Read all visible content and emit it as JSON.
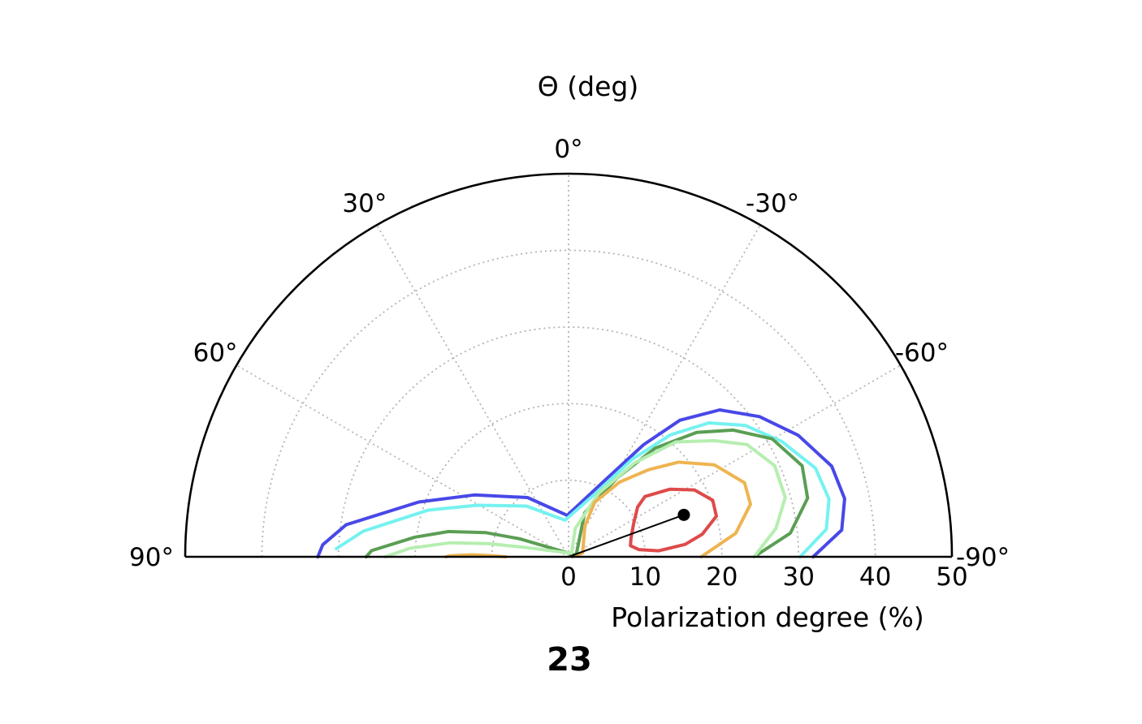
{
  "chart_data": {
    "type": "polar-contour",
    "title": "Θ (deg)",
    "xlabel": "Polarization degree (%)",
    "panel_number": "23",
    "radial_axis": {
      "range": [
        0,
        50
      ],
      "ticks": [
        0,
        10,
        20,
        30,
        40,
        50
      ],
      "tick_labels": [
        "0",
        "10",
        "20",
        "30",
        "40",
        "50"
      ],
      "grid": "dotted"
    },
    "angular_axis": {
      "range_deg": [
        -90,
        90
      ],
      "ticks": [
        90,
        60,
        30,
        0,
        -30,
        -60,
        -90
      ],
      "tick_labels": [
        "90°",
        "60°",
        "30°",
        "0°",
        "-30°",
        "-60°",
        "-90°"
      ],
      "grid": "dotted"
    },
    "contours": [
      {
        "color": "#4848e8",
        "points": [
          [
            31.9,
            -90
          ],
          [
            35.8,
            -84.4
          ],
          [
            36.8,
            -78.1
          ],
          [
            36.3,
            -71
          ],
          [
            33.9,
            -62.1
          ],
          [
            30.9,
            -53.7
          ],
          [
            27.5,
            -45.8
          ],
          [
            23.0,
            -39.2
          ],
          [
            17.6,
            -33.8
          ],
          [
            10.8,
            -24.9
          ],
          [
            5.4,
            1.8
          ],
          [
            9.4,
            34.7
          ],
          [
            14.7,
            56.7
          ],
          [
            20.8,
            69.9
          ],
          [
            29.3,
            81.8
          ],
          [
            32.1,
            87.2
          ],
          [
            32.7,
            90
          ]
        ]
      },
      {
        "color": "#74f2f0",
        "points": [
          [
            30.2,
            -90
          ],
          [
            33.8,
            -83.9
          ],
          [
            34.8,
            -77.5
          ],
          [
            34.2,
            -70.2
          ],
          [
            31.6,
            -61.5
          ],
          [
            28.7,
            -53.3
          ],
          [
            25.3,
            -46.3
          ],
          [
            20.7,
            -39.8
          ],
          [
            15.2,
            -33.1
          ],
          [
            9.1,
            -23.3
          ],
          [
            4.8,
            5.4
          ],
          [
            8.6,
            39.7
          ],
          [
            13.7,
            60.6
          ],
          [
            19.3,
            71.6
          ],
          [
            27.0,
            82.9
          ],
          [
            30.3,
            88.0
          ]
        ]
      },
      {
        "color": "#5b9e54",
        "points": [
          [
            24.2,
            -90
          ],
          [
            29.1,
            -83.9
          ],
          [
            32.1,
            -76.2
          ],
          [
            32.7,
            -68.7
          ],
          [
            30.7,
            -59.9
          ],
          [
            27.1,
            -52.4
          ],
          [
            23.3,
            -45.8
          ],
          [
            18.1,
            -38.5
          ],
          [
            12.1,
            -31.6
          ],
          [
            6.1,
            -20.1
          ],
          [
            1.0,
            -79.0
          ],
          [
            6.8,
            69.8
          ],
          [
            11.2,
            73.7
          ],
          [
            16.0,
            78.1
          ],
          [
            20.2,
            82.7
          ],
          [
            25.7,
            88.2
          ],
          [
            26.4,
            90
          ]
        ]
      },
      {
        "color": "#b6eeb0",
        "points": [
          [
            24.2,
            -90
          ],
          [
            27.3,
            -82.2
          ],
          [
            29.3,
            -74.7
          ],
          [
            29.4,
            -66.1
          ],
          [
            27.5,
            -57.8
          ],
          [
            24.3,
            -51.4
          ],
          [
            20.5,
            -43.0
          ],
          [
            15.0,
            -35.1
          ],
          [
            9.2,
            -25.4
          ],
          [
            3.8,
            -13.2
          ],
          [
            0.6,
            -40
          ],
          [
            5.9,
            77.9
          ],
          [
            10.6,
            80.6
          ],
          [
            15.5,
            83.2
          ],
          [
            20.7,
            86.9
          ],
          [
            23.9,
            90
          ]
        ]
      },
      {
        "color": "#eeb451",
        "points": [
          [
            17.3,
            -90
          ],
          [
            22.0,
            -82.0
          ],
          [
            24.7,
            -73.9
          ],
          [
            24.9,
            -67.2
          ],
          [
            22.5,
            -57.8
          ],
          [
            18.9,
            -49.2
          ],
          [
            15.4,
            -42.5
          ],
          [
            11.8,
            -34.3
          ],
          [
            7.9,
            -25.6
          ],
          [
            4.6,
            -27.7
          ],
          [
            1.9,
            -74.9
          ],
          [
            0.5,
            -90
          ]
        ]
      },
      {
        "color": "#eeb451",
        "points": [
          [
            8.2,
            90
          ],
          [
            10.3,
            89.1
          ],
          [
            12.6,
            88.8
          ],
          [
            15.5,
            89.5
          ],
          [
            16.0,
            90
          ]
        ]
      },
      {
        "color": "#df4a4a",
        "points": [
          [
            15.3,
            -83.9
          ],
          [
            17.7,
            -80.4
          ],
          [
            20.0,
            -74.6
          ],
          [
            20.2,
            -68.6
          ],
          [
            18.6,
            -62.0
          ],
          [
            15.9,
            -56.3
          ],
          [
            12.7,
            -51.7
          ],
          [
            11.1,
            -54.2
          ],
          [
            9.5,
            -63.2
          ],
          [
            8.5,
            -73.4
          ],
          [
            8.2,
            -79.8
          ],
          [
            9.2,
            -84.1
          ],
          [
            11.8,
            -86.2
          ],
          [
            15.3,
            -83.9
          ]
        ]
      }
    ],
    "marker": {
      "p": 16.0,
      "theta_deg": -70
    }
  }
}
